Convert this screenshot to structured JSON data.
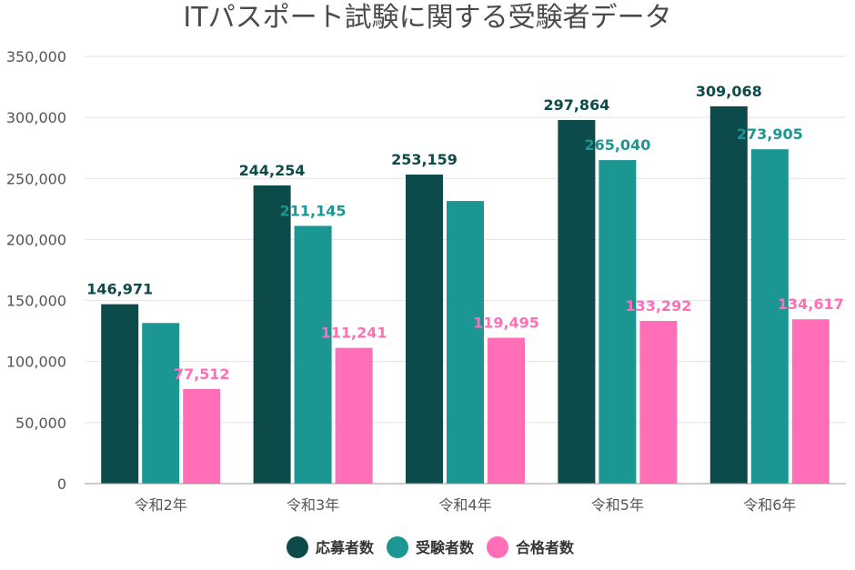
{
  "chart_data": {
    "type": "bar",
    "title": "ITパスポート試験に関する受験者データ",
    "xlabel": "",
    "ylabel": "",
    "ylim": [
      0,
      350000
    ],
    "yticks": [
      0,
      50000,
      100000,
      150000,
      200000,
      250000,
      300000,
      350000
    ],
    "ytick_labels": [
      "0",
      "50,000",
      "100,000",
      "150,000",
      "200,000",
      "250,000",
      "300,000",
      "350,000"
    ],
    "categories": [
      "令和2年",
      "令和3年",
      "令和4年",
      "令和5年",
      "令和6年"
    ],
    "grid": true,
    "legend_position": "bottom",
    "series": [
      {
        "name": "応募者数",
        "color": "#0d4a4a",
        "values": [
          146971,
          244254,
          253159,
          297864,
          309068
        ],
        "labels": [
          "146,971",
          "244,254",
          "253,159",
          "297,864",
          "309,068"
        ]
      },
      {
        "name": "受験者数",
        "color": "#1c9693",
        "values": [
          131597,
          211145,
          231526,
          265040,
          273905
        ],
        "labels": [
          "",
          "211,145",
          "",
          "265,040",
          "273,905"
        ]
      },
      {
        "name": "合格者数",
        "color": "#ff6eb7",
        "values": [
          77512,
          111241,
          119495,
          133292,
          134617
        ],
        "labels": [
          "77,512",
          "111,241",
          "119,495",
          "133,292",
          "134,617"
        ]
      }
    ]
  }
}
